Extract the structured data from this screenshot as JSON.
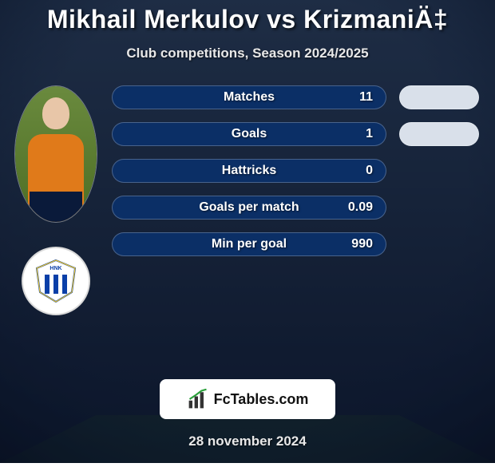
{
  "background": {
    "overlay_color": "#0e1b33",
    "stadium_top": "#27384f",
    "stadium_bottom": "#0b1425",
    "pitch_color": "#2e5a2a"
  },
  "title": {
    "text": "Mikhail Merkulov vs KrizmaniÄ‡",
    "color": "#ffffff",
    "fontsize": 32
  },
  "subtitle": {
    "text": "Club competitions, Season 2024/2025",
    "color": "#e8e8e8",
    "fontsize": 17
  },
  "player1": {
    "kit_color": "#e07a1a",
    "shorts_color": "#0a1a3a",
    "club_text": "HNK RIJEKA",
    "club_stripe_a": "#0a3fa8",
    "club_stripe_b": "#ffd21f"
  },
  "stats": {
    "pill_bg": "#0b2f66",
    "pill_text": "#ffffff",
    "right_pill_bg": "#d9e0ea",
    "rows": [
      {
        "label": "Matches",
        "value": "11",
        "has_right": true
      },
      {
        "label": "Goals",
        "value": "1",
        "has_right": true
      },
      {
        "label": "Hattricks",
        "value": "0",
        "has_right": false
      },
      {
        "label": "Goals per match",
        "value": "0.09",
        "has_right": false
      },
      {
        "label": "Min per goal",
        "value": "990",
        "has_right": false
      }
    ]
  },
  "footer": {
    "brand_text": "FcTables.com",
    "bg": "#ffffff",
    "text_color": "#111111"
  },
  "date": {
    "text": "28 november 2024",
    "color": "#e8e8e8"
  }
}
